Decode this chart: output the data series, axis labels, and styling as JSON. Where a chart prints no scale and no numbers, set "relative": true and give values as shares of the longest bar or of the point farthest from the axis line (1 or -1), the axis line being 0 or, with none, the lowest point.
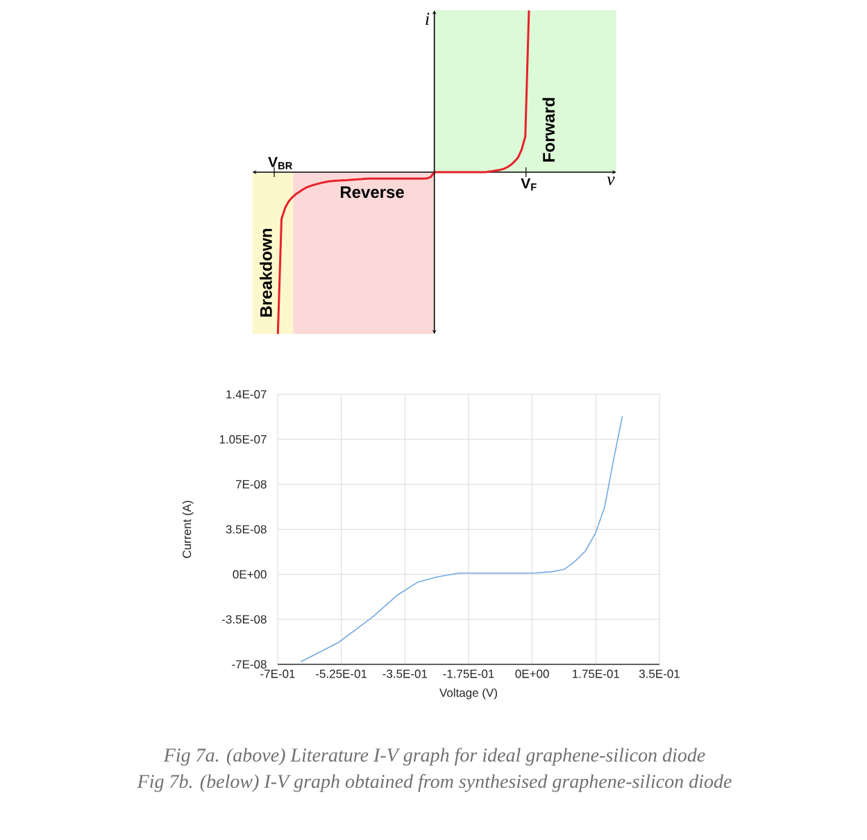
{
  "chart_data": [
    {
      "type": "line",
      "relative": true,
      "xlabel": "v",
      "ylabel": "i",
      "categories": [
        null,
        null,
        null,
        null,
        null,
        null,
        null,
        null,
        null,
        null,
        null,
        null,
        null,
        null,
        null,
        null,
        null,
        null,
        null,
        null,
        null,
        null,
        null,
        null,
        null,
        null,
        null,
        null,
        null,
        null,
        null,
        null,
        null,
        null,
        null,
        null,
        null,
        null,
        null,
        null,
        null,
        null,
        null,
        null,
        null,
        null,
        null,
        null,
        null,
        null,
        null,
        null,
        null,
        null,
        null,
        null,
        null,
        null,
        null,
        null,
        null,
        null,
        null,
        null,
        null,
        null,
        null,
        null,
        null,
        null,
        null,
        null,
        null,
        null,
        null,
        null,
        null,
        null,
        null,
        null,
        null,
        null,
        null,
        null,
        null,
        null,
        null,
        null,
        null,
        null,
        null,
        null,
        null,
        null,
        null,
        null,
        null,
        null,
        null,
        null,
        null
      ],
      "series": [
        {
          "color": "#e8202a",
          "values": [
            null,
            null,
            null,
            null,
            null,
            null,
            null,
            -1,
            -0.29,
            -0.22,
            -0.18,
            -0.155,
            -0.135,
            -0.12,
            -0.105,
            -0.093,
            -0.085,
            -0.078,
            -0.072,
            -0.066,
            -0.061,
            -0.057,
            -0.055,
            -0.053,
            -0.052,
            -0.05,
            -0.049,
            -0.047,
            -0.046,
            -0.044,
            -0.043,
            -0.041,
            -0.04,
            -0.04,
            -0.04,
            -0.04,
            -0.04,
            -0.04,
            -0.04,
            -0.04,
            -0.04,
            -0.04,
            -0.04,
            -0.04,
            -0.04,
            -0.04,
            -0.04,
            -0.04,
            -0.039,
            -0.03,
            0,
            0,
            0,
            0,
            0,
            0,
            0,
            0,
            0,
            0,
            0,
            0,
            0,
            0,
            0,
            0.003,
            0.006,
            0.01,
            0.014,
            0.02,
            0.03,
            0.045,
            0.065,
            0.09,
            0.14,
            0.22,
            1,
            null,
            null,
            null,
            null,
            null,
            null,
            null,
            null,
            null,
            null,
            null,
            null,
            null,
            null,
            null,
            null,
            null,
            null,
            null,
            null,
            null,
            null,
            null,
            null
          ]
        }
      ],
      "annotations": [
        "V$_{BR}$",
        "V$_{F}$",
        "Breakdown",
        "Reverse",
        "Forward",
        "Fig 7a. (above) Literature I-V graph for ideal graphene-silicon diode"
      ]
    },
    {
      "type": "line",
      "xlabel": "Voltage (V)",
      "ylabel": "Current (A)",
      "xlim": [
        -0.7,
        0.35
      ],
      "ylim": [
        -7e-08,
        1.4e-07
      ],
      "xticks": [
        {
          "value": -0.7,
          "label": "-7E-01"
        },
        {
          "value": -0.525,
          "label": "-5.25E-01"
        },
        {
          "value": -0.35,
          "label": "-3.5E-01"
        },
        {
          "value": -0.175,
          "label": "-1.75E-01"
        },
        {
          "value": 0,
          "label": "0E+00"
        },
        {
          "value": 0.175,
          "label": "1.75E-01"
        },
        {
          "value": 0.35,
          "label": "3.5E-01"
        }
      ],
      "yticks": [
        {
          "value": -7e-08,
          "label": "-7E-08"
        },
        {
          "value": -3.5e-08,
          "label": "-3.5E-08"
        },
        {
          "value": 0,
          "label": "0E+00"
        },
        {
          "value": 3.5e-08,
          "label": "3.5E-08"
        },
        {
          "value": 7e-08,
          "label": "7E-08"
        },
        {
          "value": 1.05e-07,
          "label": "1.05E-07"
        },
        {
          "value": 1.4e-07,
          "label": "1.4E-07"
        }
      ],
      "grid": true,
      "series": [
        {
          "color": "#74a9e3",
          "x": [
            -0.636,
            -0.533,
            -0.438,
            -0.37,
            -0.314,
            -0.261,
            -0.201,
            -0.137,
            -0.084,
            0.004,
            0.054,
            0.089,
            0.117,
            0.146,
            0.174,
            0.199,
            0.223,
            0.248
          ],
          "values": [
            -6.8e-08,
            -5.3e-08,
            -3.3e-08,
            -1.6e-08,
            -6e-09,
            -2e-09,
            1e-09,
            1e-09,
            1e-09,
            1e-09,
            2e-09,
            4e-09,
            1e-08,
            1.8e-08,
            3.2e-08,
            5.2e-08,
            8.8e-08,
            1.23e-07
          ]
        }
      ],
      "annotations": [
        "Fig 7b. (below) I-V graph obtained from synthesised graphene-silicon diode"
      ]
    }
  ]
}
